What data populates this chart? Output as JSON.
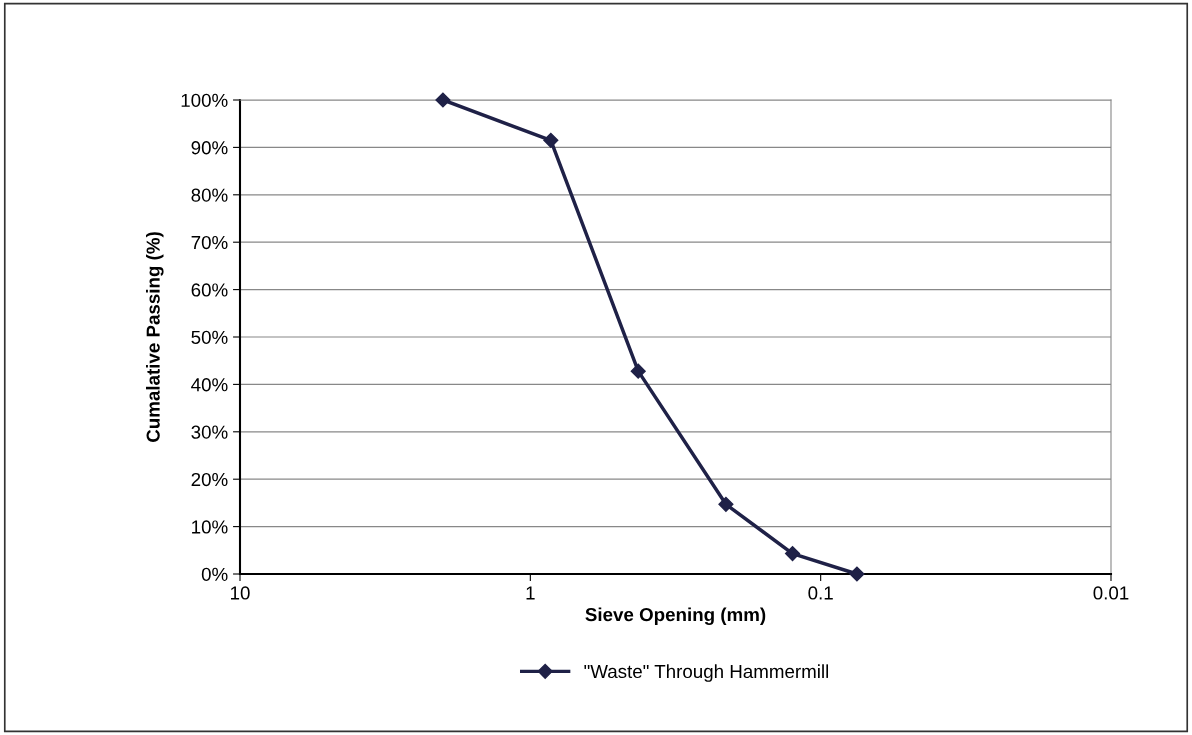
{
  "chart_data": {
    "type": "line",
    "xlabel": "Sieve Opening (mm)",
    "ylabel": "Cumalative Passing (%)",
    "x": [
      2.0,
      0.85,
      0.425,
      0.212,
      0.125,
      0.075
    ],
    "series": [
      {
        "name": "\"Waste\" Through Hammermill",
        "color": "#1f2147",
        "values": [
          100,
          91.5,
          42.8,
          14.7,
          4.3,
          0
        ]
      }
    ],
    "log": "x",
    "xlim": [
      10,
      0.01
    ],
    "xticks": [
      10,
      1,
      0.1,
      0.01
    ],
    "ylim": [
      0,
      100
    ],
    "yticks": [
      {
        "value": 0,
        "label": "0%"
      },
      {
        "value": 10,
        "label": "10%"
      },
      {
        "value": 20,
        "label": "20%"
      },
      {
        "value": 30,
        "label": "30%"
      },
      {
        "value": 40,
        "label": "40%"
      },
      {
        "value": 50,
        "label": "50%"
      },
      {
        "value": 60,
        "label": "60%"
      },
      {
        "value": 70,
        "label": "70%"
      },
      {
        "value": 80,
        "label": "80%"
      },
      {
        "value": 90,
        "label": "90%"
      },
      {
        "value": 100,
        "label": "100%"
      }
    ],
    "grid": "y",
    "legend": "bottom",
    "marker": "diamond",
    "line_style": "solid"
  }
}
